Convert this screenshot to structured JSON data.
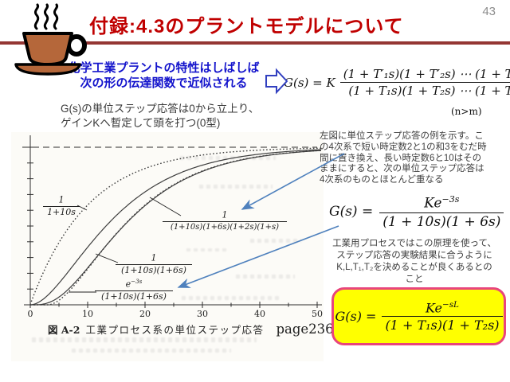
{
  "slide": {
    "page_number": "43"
  },
  "header": {
    "title": "付録:4.3のプラントモデルについて",
    "title_color": "#C00000",
    "line_color": "#943634",
    "icon": "coffee-cup-icon"
  },
  "intro": {
    "heading_lines": [
      "化学工業プラントの特性はしばしば",
      "次の形の伝達関数で近似される"
    ],
    "transition_icon": "right-block-arrow-icon",
    "note_lines": [
      "G(s)の単位ステップ応答は0から立上り、",
      "ゲインKへ暫定して頭を打つ(0型)"
    ]
  },
  "general_formula": {
    "lhs": "G(s) = K",
    "numerator": "(1 + T′₁s)(1 + T′₂s) ⋯ (1 + T′ₘs)",
    "denominator": "(1 + T₁s)(1 + T₂s) ⋯ (1 + Tₙs)",
    "condition": "(n>m)"
  },
  "figure": {
    "caption_label": "図 A-2",
    "caption_text": "工業プロセス系の単位ステップ応答",
    "page_ref": "page236",
    "curve_labels": [
      {
        "num_base": "1",
        "num_sup": "",
        "den": "1+10s"
      },
      {
        "num_base": "1",
        "num_sup": "",
        "den": "(1+10s)(1+6s)(1+2s)(1+s)"
      },
      {
        "num_base": "1",
        "num_sup": "",
        "den": "(1+10s)(1+6s)"
      },
      {
        "num_base": "e",
        "num_sup": "−3s",
        "den": "(1+10s)(1+6s)"
      }
    ]
  },
  "chart_data": {
    "type": "line",
    "title": "図 A-2 工業プロセス系の単位ステップ応答",
    "response": "unit step",
    "xlim": [
      0,
      51
    ],
    "ylim": [
      0,
      1.08
    ],
    "x_ticks": [
      0,
      10,
      20,
      30,
      40,
      50
    ],
    "x_minor_step": 5,
    "y_tick_step": 0.1,
    "y_ticks_unlabeled": true,
    "asymptote": 1.0,
    "grid": false,
    "legend": "inline-fraction-labels",
    "series": [
      {
        "name": "1/(1+10s)",
        "time_constants": [
          10
        ],
        "delay": 0,
        "line_style": "dotted"
      },
      {
        "name": "1/((1+10s)(1+6s))",
        "time_constants": [
          10,
          6
        ],
        "delay": 0,
        "line_style": "solid"
      },
      {
        "name": "1/((1+10s)(1+6s)(1+2s)(1+s))",
        "time_constants": [
          10,
          6,
          2,
          1
        ],
        "delay": 0,
        "line_style": "solid"
      },
      {
        "name": "e^(-3s)/((1+10s)(1+6s))",
        "time_constants": [
          10,
          6
        ],
        "delay": 3,
        "line_style": "dotted"
      }
    ]
  },
  "right_panel": {
    "desc_lines": [
      "左図に単位ステップ応答の例を示す。こ",
      "の4次系で短い時定数2と1の和3をむだ時",
      "間に置き換え、長い時定数6と10はその",
      "ままにすると、次の単位ステップ応答は",
      "4次系のものとほとんど重なる"
    ],
    "approx_formula": {
      "lhs": "G(s) =",
      "num_base": "Ke",
      "num_sup": "−3s",
      "denominator": "(1 + 10s)(1 + 6s)"
    },
    "practice_lines": [
      "工業用プロセスではこの原理を使って、",
      "ステップ応答の実験結果に合うように",
      "K,L,T₁,T₂を決めることが良くあるとの",
      "こと"
    ],
    "boxed_formula": {
      "lhs": "G(s) =",
      "num_base": "Ke",
      "num_sup": "−sL",
      "denominator": "(1 + T₁s)(1 + T₂s)"
    },
    "box_colors": {
      "fill": "#FFFF00",
      "border": "#E8457C"
    },
    "arrow_color": "#4F81BD"
  }
}
